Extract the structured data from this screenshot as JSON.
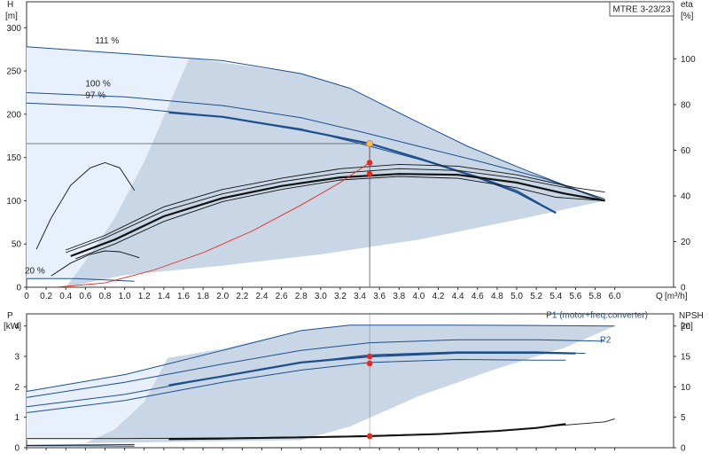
{
  "model_label": "MTRE 3-23/23",
  "colors": {
    "envelope_light": "#e7f0fb",
    "envelope_dark": "#c8d6e5",
    "curve_blue": "#1d4f8f",
    "curve_black": "#111111",
    "duty_line": "#e8291e",
    "duty_point": "#e8291e",
    "operating_point": "#f5c542",
    "guide_line": "#555555"
  },
  "chart_data": [
    {
      "id": "head",
      "type": "line",
      "ylabel_left": "H",
      "yunit_left": "[m]",
      "ylabel_right": "eta",
      "yunit_right": "[%]",
      "xlabel": "Q",
      "xunit": "[m³/h]",
      "xlim": [
        0,
        6.6
      ],
      "ylim_left": [
        0,
        330
      ],
      "ylim_right": [
        0,
        125
      ],
      "xticks": [
        "0",
        "0.2",
        "0.4",
        "0.6",
        "0.8",
        "1.0",
        "1.2",
        "1.4",
        "1.6",
        "1.8",
        "2.0",
        "2.2",
        "2.4",
        "2.6",
        "2.8",
        "3.0",
        "3.2",
        "3.4",
        "3.6",
        "3.8",
        "4.0",
        "4.2",
        "4.4",
        "4.6",
        "4.8",
        "5.0",
        "5.2",
        "5.4",
        "5.6",
        "5.8",
        "6.0"
      ],
      "yticks_left": [
        "0",
        "50",
        "100",
        "150",
        "200",
        "250",
        "300"
      ],
      "yticks_right": [
        "0",
        "20",
        "40",
        "60",
        "80",
        "100"
      ],
      "speed_labels": [
        {
          "text": "111 %",
          "q": 0.7,
          "h": 282
        },
        {
          "text": "100 %",
          "q": 0.6,
          "h": 232
        },
        {
          "text": "97 %",
          "q": 0.6,
          "h": 219
        },
        {
          "text": "20 %",
          "q": 0.0,
          "h": 16
        }
      ],
      "envelope": [
        [
          0,
          278
        ],
        [
          1.6,
          265
        ],
        [
          2.8,
          247
        ],
        [
          3.3,
          230
        ],
        [
          3.9,
          196
        ],
        [
          4.5,
          163
        ],
        [
          5.1,
          135
        ],
        [
          5.9,
          100
        ],
        [
          5.9,
          100
        ],
        [
          5.0,
          78
        ],
        [
          4.0,
          55
        ],
        [
          3.0,
          38
        ],
        [
          2.0,
          25
        ],
        [
          1.0,
          14
        ],
        [
          0.3,
          10
        ],
        [
          0,
          10
        ]
      ],
      "operating_region": [
        [
          1.66,
          265
        ],
        [
          2.8,
          247
        ],
        [
          3.3,
          230
        ],
        [
          3.9,
          196
        ],
        [
          4.5,
          163
        ],
        [
          5.1,
          135
        ],
        [
          5.9,
          100
        ],
        [
          5.0,
          78
        ],
        [
          4.0,
          55
        ],
        [
          3.0,
          38
        ],
        [
          2.0,
          25
        ],
        [
          1.0,
          14
        ],
        [
          0.4,
          0
        ],
        [
          0.6,
          30
        ],
        [
          0.9,
          80
        ],
        [
          1.2,
          145
        ],
        [
          1.45,
          210
        ]
      ],
      "head_curves": [
        {
          "name": "111 %",
          "style": "blue-thin",
          "points": [
            [
              0,
              278
            ],
            [
              1.0,
              270
            ],
            [
              2.0,
              262
            ],
            [
              2.8,
              247
            ],
            [
              3.3,
              230
            ],
            [
              3.9,
              196
            ],
            [
              4.5,
              163
            ],
            [
              5.1,
              135
            ],
            [
              5.9,
              100
            ]
          ]
        },
        {
          "name": "100 %",
          "style": "blue-thin",
          "points": [
            [
              0,
              225
            ],
            [
              1.0,
              220
            ],
            [
              2.0,
              210
            ],
            [
              2.8,
              196
            ],
            [
              3.4,
              180
            ],
            [
              4.0,
              163
            ],
            [
              4.6,
              146
            ],
            [
              5.3,
              125
            ],
            [
              5.9,
              100
            ]
          ]
        },
        {
          "name": "97 %",
          "style": "blue-thin",
          "points": [
            [
              0,
              213
            ],
            [
              1.0,
              208
            ],
            [
              2.0,
              197
            ],
            [
              2.8,
              183
            ],
            [
              3.4,
              166
            ],
            [
              4.0,
              148
            ],
            [
              4.6,
              128
            ],
            [
              5.0,
              112
            ],
            [
              5.4,
              86
            ]
          ]
        },
        {
          "name": "",
          "style": "blue-thick",
          "points": [
            [
              1.45,
              202
            ],
            [
              2.0,
              197
            ],
            [
              2.8,
              182
            ],
            [
              3.5,
              166
            ],
            [
              4.0,
              149
            ],
            [
              4.6,
              127
            ],
            [
              5.0,
              110
            ],
            [
              5.4,
              86
            ]
          ]
        },
        {
          "name": "",
          "style": "blue-thin",
          "points": [
            [
              0,
              10
            ],
            [
              0.5,
              10
            ],
            [
              1.1,
              7
            ]
          ]
        }
      ],
      "eta_curves": [
        {
          "style": "black",
          "points": [
            [
              0.4,
              43
            ],
            [
              0.8,
              60
            ],
            [
              1.4,
              93
            ],
            [
              2.0,
              113
            ],
            [
              2.6,
              126
            ],
            [
              3.2,
              137
            ],
            [
              3.8,
              142
            ],
            [
              4.4,
              140
            ],
            [
              5.0,
              130
            ],
            [
              5.6,
              115
            ],
            [
              5.9,
              110
            ]
          ]
        },
        {
          "style": "black",
          "points": [
            [
              0.4,
              40
            ],
            [
              0.8,
              57
            ],
            [
              1.4,
              88
            ],
            [
              2.0,
              108
            ],
            [
              2.6,
              122
            ],
            [
              3.2,
              132
            ],
            [
              3.8,
              137
            ],
            [
              4.4,
              135
            ],
            [
              5.0,
              126
            ],
            [
              5.6,
              113
            ],
            [
              5.9,
              102
            ]
          ]
        },
        {
          "style": "black-thick",
          "points": [
            [
              0.45,
              36
            ],
            [
              0.9,
              55
            ],
            [
              1.4,
              82
            ],
            [
              2.0,
              103
            ],
            [
              2.6,
              117
            ],
            [
              3.2,
              127
            ],
            [
              3.8,
              131
            ],
            [
              4.4,
              130
            ],
            [
              5.0,
              121
            ],
            [
              5.5,
              108
            ],
            [
              5.9,
              100
            ]
          ]
        },
        {
          "style": "black",
          "points": [
            [
              0.5,
              33
            ],
            [
              0.9,
              50
            ],
            [
              1.4,
              76
            ],
            [
              2.0,
              99
            ],
            [
              2.6,
              113
            ],
            [
              3.2,
              124
            ],
            [
              3.8,
              128
            ],
            [
              4.4,
              126
            ],
            [
              5.0,
              115
            ],
            [
              5.4,
              104
            ],
            [
              5.9,
              100
            ]
          ]
        },
        {
          "style": "black",
          "points": [
            [
              0.1,
              44
            ],
            [
              0.25,
              80
            ],
            [
              0.45,
              118
            ],
            [
              0.65,
              138
            ],
            [
              0.8,
              144
            ],
            [
              0.95,
              138
            ],
            [
              1.1,
              112
            ]
          ]
        },
        {
          "style": "black",
          "points": [
            [
              0.25,
              13
            ],
            [
              0.45,
              28
            ],
            [
              0.65,
              38
            ],
            [
              0.8,
              42
            ],
            [
              0.95,
              41
            ],
            [
              1.1,
              36
            ],
            [
              1.15,
              34
            ]
          ]
        }
      ],
      "system_curve": {
        "points": [
          [
            0.3,
            0
          ],
          [
            0.8,
            5
          ],
          [
            1.3,
            20
          ],
          [
            1.8,
            40
          ],
          [
            2.3,
            65
          ],
          [
            2.8,
            95
          ],
          [
            3.2,
            121
          ],
          [
            3.5,
            144
          ],
          [
            3.5,
            166
          ]
        ]
      },
      "operating_point": {
        "q": 3.5,
        "h": 166
      },
      "duty_points": [
        {
          "q": 3.5,
          "h": 144
        },
        {
          "q": 3.5,
          "h": 131
        }
      ],
      "guide": {
        "q": 3.5,
        "h": 166
      }
    },
    {
      "id": "power",
      "type": "line",
      "ylabel_left": "P",
      "yunit_left": "[kW]",
      "ylabel_right": "NPSH",
      "yunit_right": "[m]",
      "xlim": [
        0,
        6.6
      ],
      "ylim_left": [
        0,
        4.4
      ],
      "ylim_right": [
        0,
        22
      ],
      "yticks_left": [
        "0",
        "1",
        "2",
        "3",
        "4"
      ],
      "yticks_right": [
        "0",
        "5",
        "10",
        "15",
        "20"
      ],
      "series_labels": [
        {
          "text": "P1 (motor+freq.converter)",
          "q": 5.3,
          "p": 4.27
        },
        {
          "text": "P2",
          "q": 5.85,
          "p": 3.45
        }
      ],
      "envelope": [
        [
          0,
          1.85
        ],
        [
          1.0,
          2.4
        ],
        [
          2.0,
          3.2
        ],
        [
          2.8,
          3.85
        ],
        [
          3.3,
          4.03
        ],
        [
          6.0,
          4.0
        ],
        [
          6.0,
          4.0
        ],
        [
          5.5,
          3.3
        ],
        [
          4.8,
          2.6
        ],
        [
          4.0,
          1.7
        ],
        [
          3.3,
          0.7
        ],
        [
          2.8,
          0.25
        ],
        [
          0,
          0.25
        ]
      ],
      "operating_region": [
        [
          1.44,
          2.95
        ],
        [
          2.0,
          3.25
        ],
        [
          2.8,
          3.85
        ],
        [
          3.3,
          4.03
        ],
        [
          6.0,
          4.0
        ],
        [
          5.5,
          3.3
        ],
        [
          4.8,
          2.6
        ],
        [
          4.0,
          1.7
        ],
        [
          3.3,
          0.7
        ],
        [
          2.8,
          0.25
        ],
        [
          0.6,
          0.15
        ],
        [
          0.9,
          0.6
        ],
        [
          1.2,
          1.5
        ]
      ],
      "power_curves": [
        {
          "style": "blue",
          "points": [
            [
              0,
              1.85
            ],
            [
              1.0,
              2.4
            ],
            [
              2.0,
              3.2
            ],
            [
              2.8,
              3.85
            ],
            [
              3.3,
              4.03
            ],
            [
              4.0,
              4.03
            ],
            [
              5.0,
              4.02
            ],
            [
              6.0,
              4.0
            ]
          ]
        },
        {
          "style": "blue",
          "points": [
            [
              0,
              1.65
            ],
            [
              1.0,
              2.15
            ],
            [
              2.0,
              2.75
            ],
            [
              2.8,
              3.2
            ],
            [
              3.5,
              3.45
            ],
            [
              4.4,
              3.55
            ],
            [
              5.2,
              3.55
            ],
            [
              5.9,
              3.5
            ]
          ]
        },
        {
          "style": "blue",
          "points": [
            [
              0,
              1.35
            ],
            [
              1.0,
              1.75
            ],
            [
              2.0,
              2.35
            ],
            [
              2.8,
              2.8
            ],
            [
              3.5,
              3.05
            ],
            [
              4.4,
              3.15
            ],
            [
              5.2,
              3.15
            ],
            [
              5.7,
              3.1
            ]
          ]
        },
        {
          "style": "blue-thick",
          "points": [
            [
              1.45,
              2.05
            ],
            [
              2.0,
              2.35
            ],
            [
              2.8,
              2.8
            ],
            [
              3.5,
              3.0
            ],
            [
              4.4,
              3.12
            ],
            [
              5.2,
              3.12
            ],
            [
              5.6,
              3.1
            ]
          ]
        },
        {
          "style": "blue",
          "points": [
            [
              0,
              1.15
            ],
            [
              1.0,
              1.55
            ],
            [
              2.0,
              2.15
            ],
            [
              2.8,
              2.55
            ],
            [
              3.5,
              2.8
            ],
            [
              4.4,
              2.9
            ],
            [
              5.2,
              2.88
            ],
            [
              5.5,
              2.88
            ]
          ]
        },
        {
          "style": "blue",
          "points": [
            [
              0,
              0.06
            ],
            [
              0.5,
              0.06
            ],
            [
              1.1,
              0.05
            ]
          ]
        }
      ],
      "npsh_curves": [
        {
          "style": "black",
          "points": [
            [
              0,
              0.3
            ],
            [
              1.0,
              0.3
            ],
            [
              2.0,
              0.32
            ],
            [
              3.0,
              0.36
            ],
            [
              3.5,
              0.4
            ],
            [
              4.2,
              0.46
            ],
            [
              4.8,
              0.55
            ],
            [
              5.4,
              0.72
            ],
            [
              5.9,
              0.85
            ],
            [
              6.0,
              0.95
            ]
          ]
        },
        {
          "style": "black-thick",
          "points": [
            [
              1.45,
              0.28
            ],
            [
              2.0,
              0.3
            ],
            [
              3.0,
              0.35
            ],
            [
              3.5,
              0.38
            ],
            [
              4.2,
              0.45
            ],
            [
              4.8,
              0.55
            ],
            [
              5.2,
              0.65
            ],
            [
              5.5,
              0.78
            ]
          ]
        },
        {
          "style": "black",
          "points": [
            [
              0,
              0.08
            ],
            [
              0.5,
              0.09
            ],
            [
              1.1,
              0.1
            ]
          ]
        }
      ],
      "duty_points": [
        {
          "q": 3.5,
          "p": 3.0
        },
        {
          "q": 3.5,
          "p": 2.77
        },
        {
          "q": 3.5,
          "p": 0.38
        }
      ],
      "guide": {
        "q": 3.5
      }
    }
  ]
}
